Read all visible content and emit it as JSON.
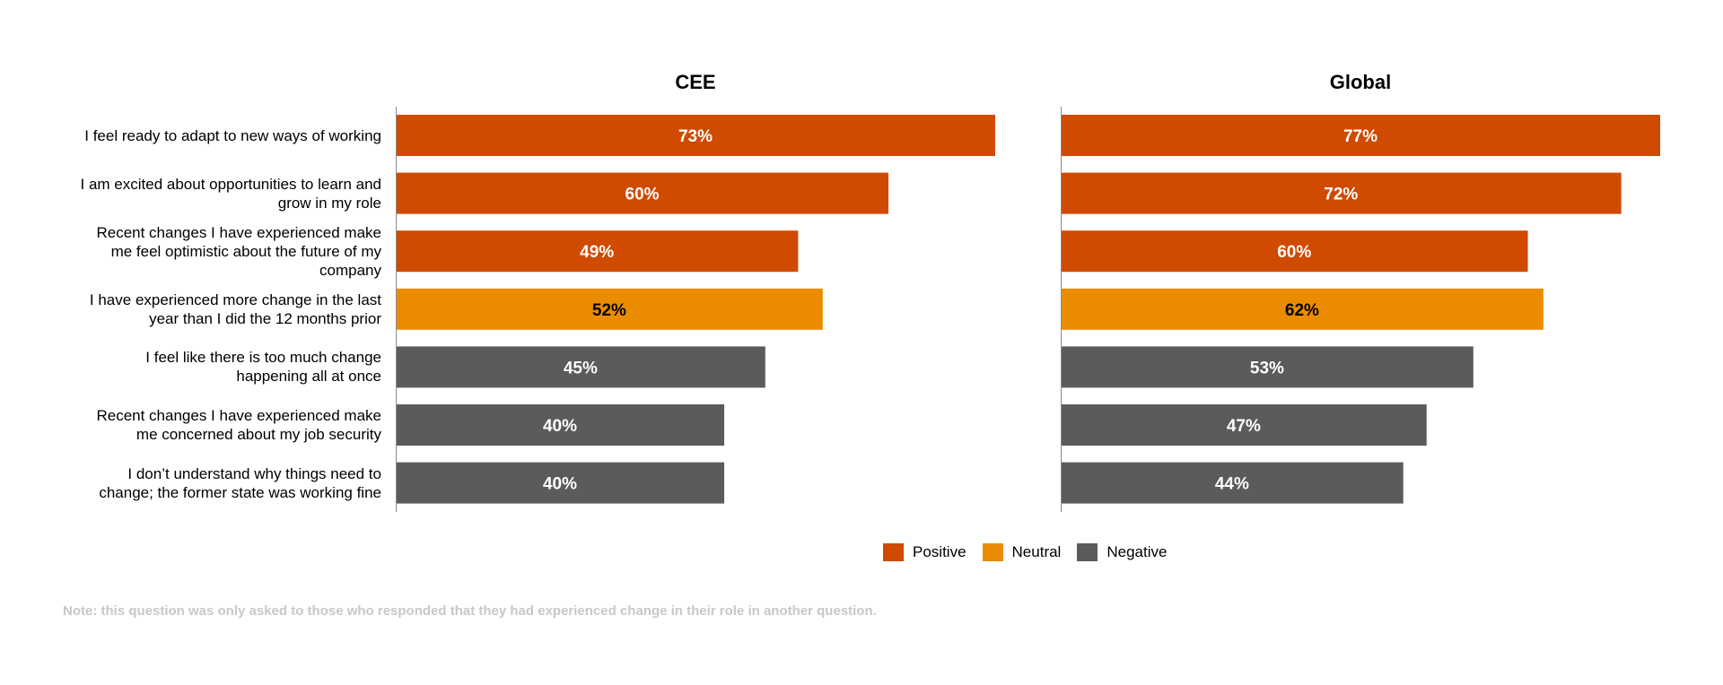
{
  "chart_data": {
    "type": "bar",
    "orientation": "horizontal",
    "categories": [
      "I feel ready to adapt to new ways of working",
      "I am excited about opportunities to learn and grow in my role",
      "Recent changes I have experienced make me feel optimistic about the future of my company",
      "I have experienced more change in the last year than I did the 12 months prior",
      "I feel like there is too much change happening all at once",
      "Recent changes I have experienced make me concerned about my job security",
      "I don’t understand why things need to change; the former state was working fine"
    ],
    "category_lines": [
      [
        "I feel ready to adapt to new ways of working"
      ],
      [
        "I am excited about opportunities to learn and",
        "grow in my role"
      ],
      [
        "Recent changes I have experienced make",
        "me feel optimistic about the future of my",
        "company"
      ],
      [
        "I have experienced more change in the last",
        "year than I did the 12 months prior"
      ],
      [
        "I feel like there is too much change",
        "happening all at once"
      ],
      [
        "Recent changes I have experienced make",
        "me concerned about my job security"
      ],
      [
        "I don’t understand why things need to",
        "change; the former state was working fine"
      ]
    ],
    "sentiment": [
      "Positive",
      "Positive",
      "Positive",
      "Neutral",
      "Negative",
      "Negative",
      "Negative"
    ],
    "panels": [
      {
        "title": "CEE",
        "values": [
          73,
          60,
          49,
          52,
          45,
          40,
          40
        ],
        "xlim": [
          0,
          73
        ]
      },
      {
        "title": "Global",
        "values": [
          77,
          72,
          60,
          62,
          53,
          47,
          44
        ],
        "xlim": [
          0,
          77
        ]
      }
    ],
    "value_suffix": "%",
    "legend": [
      {
        "label": "Positive",
        "color": "#d04a02"
      },
      {
        "label": "Neutral",
        "color": "#eb8c00"
      },
      {
        "label": "Negative",
        "color": "#5b5b5b"
      }
    ],
    "legend_position": "bottom-center",
    "label_colors": {
      "Positive": "#ffffff",
      "Neutral": "#000000",
      "Negative": "#ffffff"
    },
    "grid": false
  },
  "note": "Note: this question was only asked to those who responded that they had experienced change in their role in another question."
}
